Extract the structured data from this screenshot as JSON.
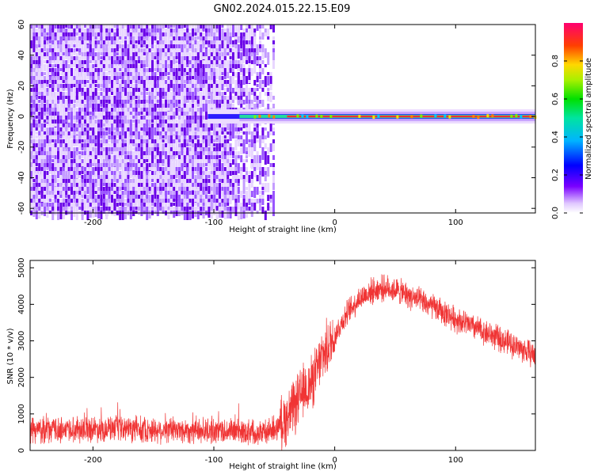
{
  "title": "GN02.2024.015.22.15.E09",
  "colors": {
    "snr_line": "#f03434",
    "frame": "#000000"
  },
  "chart_data": [
    {
      "type": "heatmap",
      "xlabel": "Height of straight line (km)",
      "ylabel": "Frequency (Hz)",
      "xlim": [
        -252,
        166
      ],
      "ylim": [
        -63,
        60
      ],
      "x_ticks": [
        -200,
        -100,
        0,
        100
      ],
      "y_ticks": [
        -60,
        -40,
        -20,
        0,
        20,
        40,
        60
      ],
      "colorbar": {
        "label": "Normalized spectral amplitude",
        "range": [
          0.0,
          1.0
        ],
        "ticks": [
          0.0,
          0.2,
          0.4,
          0.6,
          0.8
        ],
        "colormap": "rainbow (white-violet-blue-cyan-green-yellow-red-magenta)"
      },
      "features": {
        "noise_region_x": [
          -252,
          -60
        ],
        "signal_band_x": [
          -105,
          166
        ],
        "signal_frequency_hz": 0
      },
      "grid": false
    },
    {
      "type": "line",
      "xlabel": "Height of straight line (km)",
      "ylabel": "SNR (10 * v/v)",
      "xlim": [
        -252,
        166
      ],
      "ylim": [
        0,
        5200
      ],
      "x_ticks": [
        -200,
        -100,
        0,
        100
      ],
      "y_ticks": [
        0,
        1000,
        2000,
        3000,
        4000,
        5000
      ],
      "series": [
        {
          "x": [
            -252,
            -200,
            -150,
            -100,
            -70,
            -55,
            -45,
            -35,
            -25,
            -20,
            -15,
            -10,
            -5,
            0,
            10,
            20,
            30,
            40,
            50,
            60,
            70,
            80,
            100,
            120,
            140,
            166
          ],
          "y": [
            550,
            600,
            560,
            540,
            520,
            500,
            700,
            1100,
            1650,
            1800,
            2150,
            2600,
            2850,
            3150,
            3750,
            4150,
            4350,
            4450,
            4400,
            4250,
            4100,
            3950,
            3600,
            3300,
            3000,
            2600
          ]
        }
      ],
      "grid": false
    }
  ]
}
